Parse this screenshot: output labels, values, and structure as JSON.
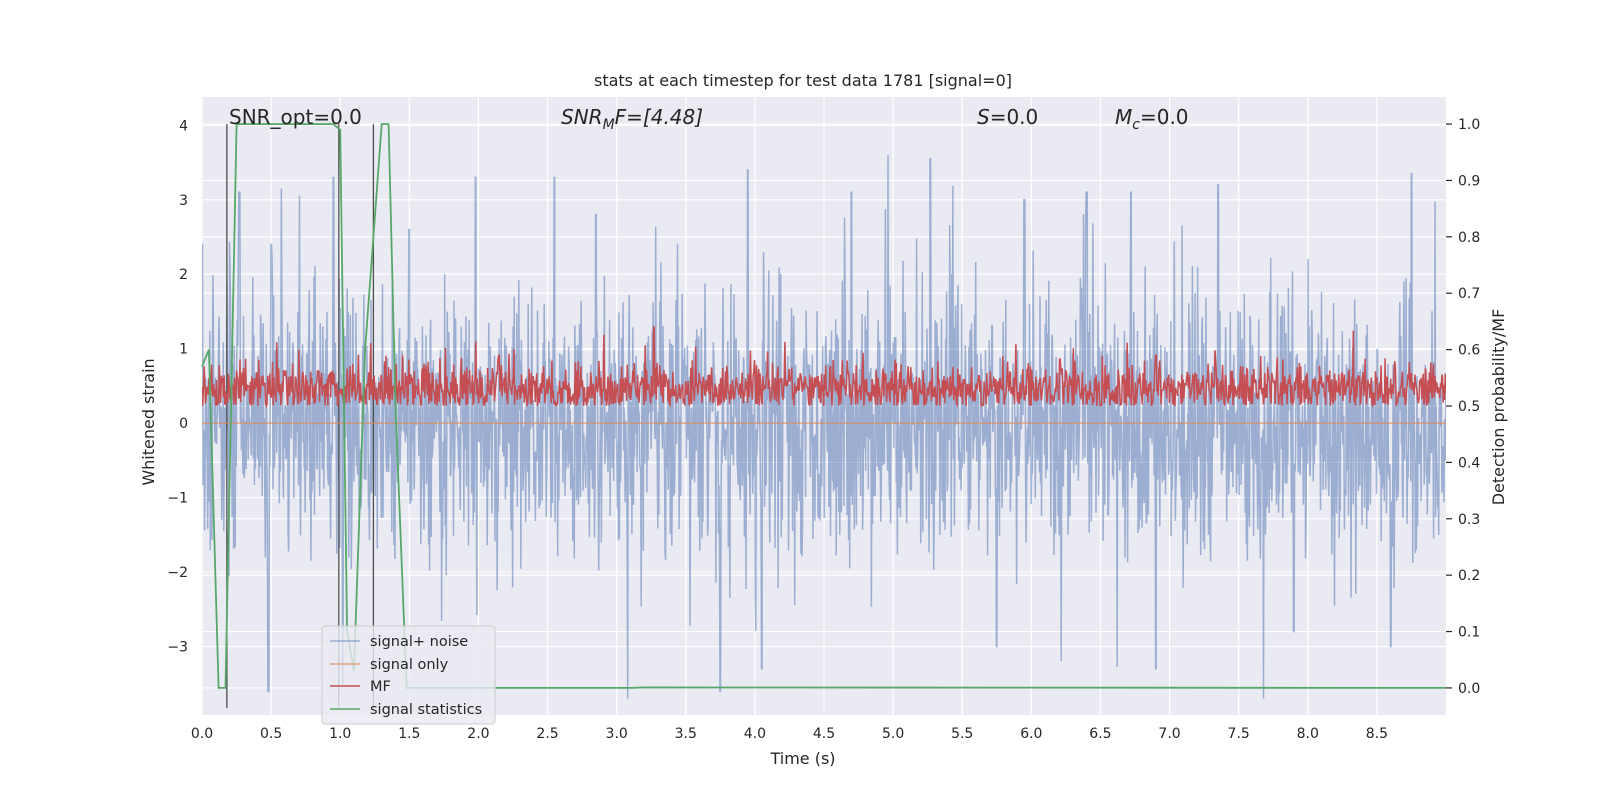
{
  "chart_data": {
    "type": "line",
    "title": "stats at each timestep for test data 1781 [signal=0]",
    "xlabel": "Time (s)",
    "ylabel_left": "Whitened strain",
    "ylabel_right": "Detection probability/MF",
    "xlim": [
      0.0,
      9.0
    ],
    "ylim_left": [
      -3.92,
      4.38
    ],
    "ylim_right": [
      -0.048,
      1.048
    ],
    "xticks": [
      0.0,
      0.5,
      1.0,
      1.5,
      2.0,
      2.5,
      3.0,
      3.5,
      4.0,
      4.5,
      5.0,
      5.5,
      6.0,
      6.5,
      7.0,
      7.5,
      8.0,
      8.5
    ],
    "xtick_labels": [
      "0.0",
      "0.5",
      "1.0",
      "1.5",
      "2.0",
      "2.5",
      "3.0",
      "3.5",
      "4.0",
      "4.5",
      "5.0",
      "5.5",
      "6.0",
      "6.5",
      "7.0",
      "7.5",
      "8.0",
      "8.5"
    ],
    "yticks_left": [
      -3,
      -2,
      -1,
      0,
      1,
      2,
      3,
      4
    ],
    "ytick_labels_left": [
      "−3",
      "−2",
      "−1",
      "0",
      "1",
      "2",
      "3",
      "4"
    ],
    "yticks_right": [
      0.0,
      0.1,
      0.2,
      0.3,
      0.4,
      0.5,
      0.6,
      0.7,
      0.8,
      0.9,
      1.0
    ],
    "ytick_labels_right": [
      "0.0",
      "0.1",
      "0.2",
      "0.3",
      "0.4",
      "0.5",
      "0.6",
      "0.7",
      "0.8",
      "0.9",
      "1.0"
    ],
    "grid": true,
    "legend_position": "lower-left",
    "colors": {
      "background": "#eaeaf2",
      "grid": "#ffffff",
      "signal_noise": "#4c72b0",
      "signal_only": "#dd8452",
      "mf": "#c44e52",
      "signal_statistics": "#55a868",
      "vlines": "#4d4d4d"
    },
    "annotations": {
      "snr_opt": "SNR_opt=0.0",
      "snr_mf_main": "SNR",
      "snr_mf_sub": "M",
      "snr_mf_rest": "F=[4.48]",
      "s_main": "S",
      "s_rest": "=0.0",
      "mc_main": "M",
      "mc_sub": "c",
      "mc_rest": "=0.0"
    },
    "series": [
      {
        "name": "signal+ noise",
        "axis": "left",
        "style": "dense noise around 0, amplitude mostly within ±2, spikes to ±3.5",
        "envelope_peaks": [
          [
            0.0,
            2.4
          ],
          [
            0.27,
            3.1
          ],
          [
            0.5,
            2.4
          ],
          [
            0.95,
            3.3
          ],
          [
            1.5,
            2.6
          ],
          [
            1.98,
            3.3
          ],
          [
            2.55,
            3.3
          ],
          [
            2.85,
            2.8
          ],
          [
            3.95,
            3.4
          ],
          [
            4.7,
            3.1
          ],
          [
            5.27,
            3.55
          ],
          [
            5.95,
            3.0
          ],
          [
            6.4,
            3.1
          ],
          [
            6.72,
            3.1
          ],
          [
            7.35,
            3.2
          ],
          [
            8.75,
            3.35
          ],
          [
            3.75,
            -3.6
          ],
          [
            0.48,
            -3.6
          ],
          [
            1.02,
            -3.5
          ],
          [
            4.05,
            -3.3
          ],
          [
            5.75,
            -3.0
          ],
          [
            6.9,
            -3.3
          ],
          [
            7.9,
            -2.8
          ],
          [
            8.6,
            -3.0
          ]
        ]
      },
      {
        "name": "signal only",
        "axis": "left",
        "x": [
          0.0,
          9.0
        ],
        "y": [
          0.0,
          0.0
        ]
      },
      {
        "name": "MF",
        "axis": "right",
        "style": "noisy trace between ~0.5 and ~0.58, occasional peaks to 0.64",
        "baseline": 0.53,
        "spread": 0.035,
        "peaks": [
          [
            3.27,
            0.64
          ],
          [
            1.45,
            0.59
          ],
          [
            2.15,
            0.59
          ],
          [
            0.7,
            0.6
          ],
          [
            6.9,
            0.59
          ]
        ]
      },
      {
        "name": "signal statistics",
        "axis": "right",
        "x": [
          0.0,
          0.05,
          0.12,
          0.17,
          0.25,
          0.5,
          0.75,
          0.95,
          1.0,
          1.05,
          1.1,
          1.18,
          1.3,
          1.35,
          1.4,
          1.48,
          1.6,
          2.0,
          3.1,
          3.2,
          9.0
        ],
        "y": [
          0.57,
          0.6,
          0.0,
          0.0,
          1.0,
          1.0,
          1.0,
          1.0,
          0.99,
          0.1,
          0.03,
          0.6,
          1.0,
          1.0,
          0.5,
          0.0,
          0.0,
          0.0,
          0.0,
          0.001,
          0.0
        ]
      }
    ],
    "vertical_lines": [
      0.18,
      0.99,
      1.24
    ]
  }
}
